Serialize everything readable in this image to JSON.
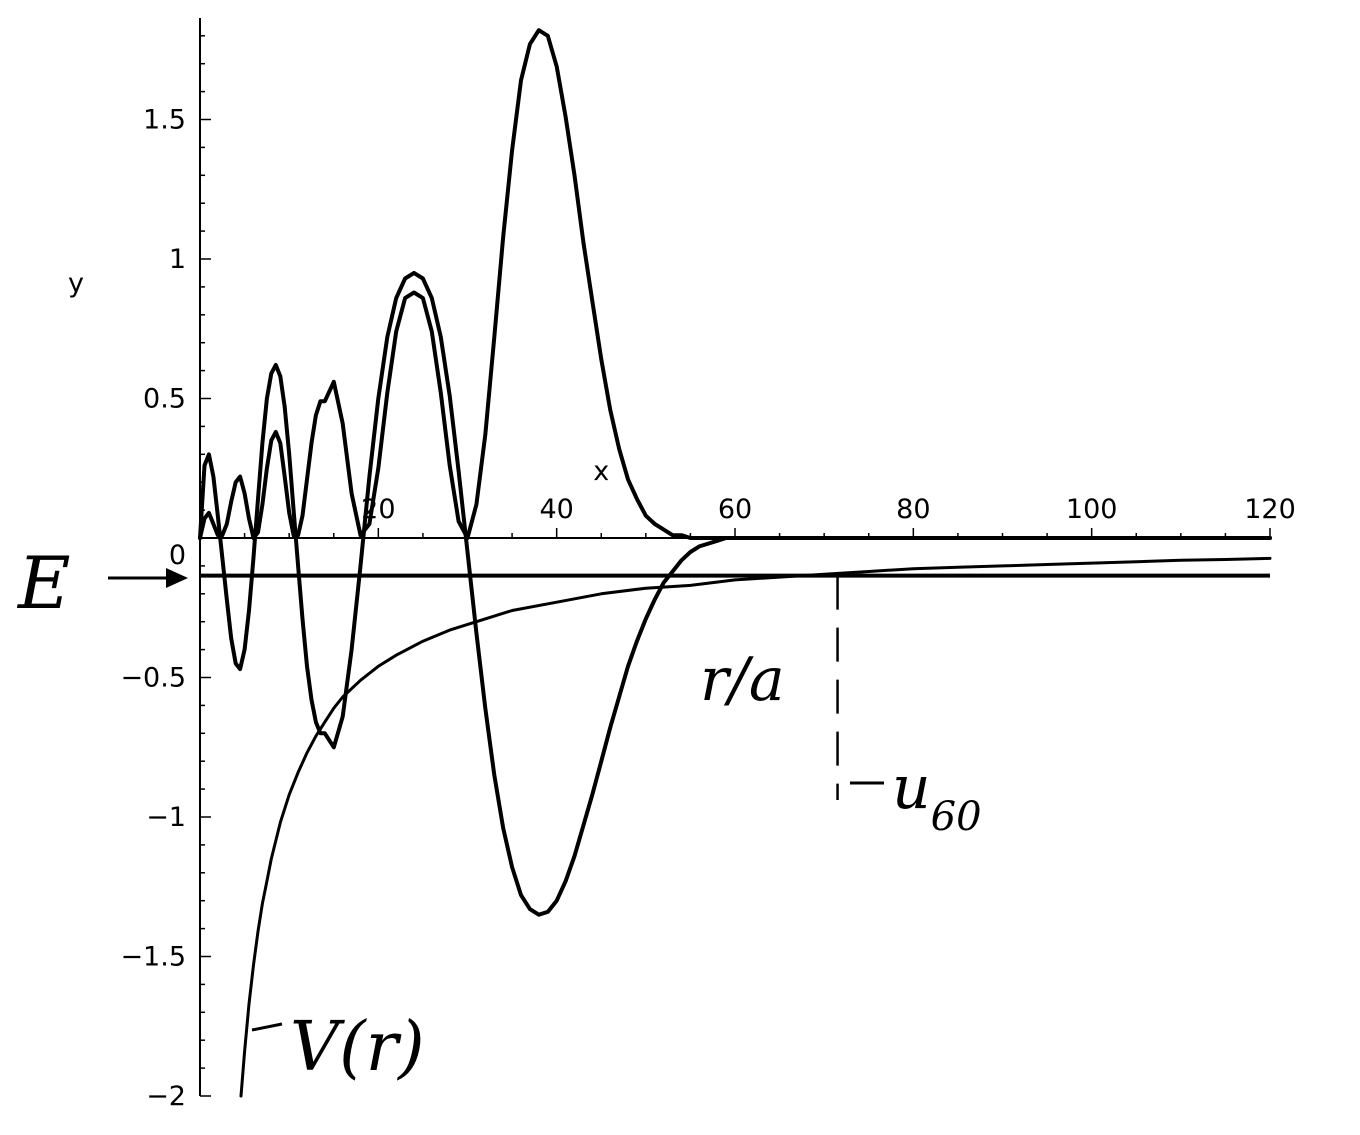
{
  "chart_data": {
    "type": "line",
    "xlabel": "x",
    "ylabel": "y",
    "xlim": [
      0,
      120
    ],
    "ylim": [
      -2,
      1.85
    ],
    "x_ticks": [
      "20",
      "40",
      "60",
      "80",
      "100",
      "120"
    ],
    "y_ticks": [
      "1.5",
      "1",
      "0.5",
      "0",
      "−0.5",
      "−1",
      "−1.5",
      "−2"
    ],
    "energy_level": -0.135,
    "turning_point_x": 71.5,
    "annotations": {
      "energy": "E",
      "turning_point": "r/a",
      "wavefunction": "u",
      "wavefunction_subscript": "60",
      "potential": "V(r)"
    },
    "series": [
      {
        "key": "u60",
        "x": [
          0,
          0.5,
          1,
          1.5,
          2,
          2.5,
          3,
          3.5,
          4,
          4.5,
          5,
          5.5,
          6,
          6.5,
          7,
          7.5,
          8,
          8.5,
          9,
          9.5,
          10,
          10.5,
          11,
          11.5,
          12,
          12.5,
          13,
          13.5,
          14,
          15,
          16,
          17,
          18,
          19,
          20,
          21,
          22,
          23,
          24,
          25,
          26,
          27,
          28,
          29,
          30,
          31,
          32,
          33,
          34,
          35,
          36,
          37,
          38,
          39,
          40,
          41,
          42,
          43,
          44,
          45,
          46,
          47,
          48,
          49,
          50,
          51,
          52,
          53,
          54,
          55,
          56,
          57,
          58,
          59,
          60,
          61,
          62,
          63,
          64,
          65,
          66,
          67,
          68,
          69,
          70,
          71,
          72,
          73,
          74,
          75,
          76,
          77,
          78,
          79,
          80,
          82,
          84,
          86,
          88,
          90,
          92,
          94,
          96,
          98,
          100,
          102,
          104,
          106,
          108,
          110,
          112,
          114,
          116,
          118,
          120
        ],
        "y": [
          0,
          0.26,
          0.3,
          0.22,
          0.08,
          -0.07,
          -0.22,
          -0.36,
          -0.45,
          -0.47,
          -0.4,
          -0.26,
          -0.07,
          0.14,
          0.34,
          0.5,
          0.59,
          0.62,
          0.58,
          0.47,
          0.3,
          0.1,
          -0.1,
          -0.29,
          -0.46,
          -0.58,
          -0.66,
          -0.7,
          -0.7,
          -0.75,
          -0.64,
          -0.4,
          -0.1,
          0.22,
          0.5,
          0.72,
          0.86,
          0.93,
          0.95,
          0.93,
          0.86,
          0.72,
          0.51,
          0.24,
          -0.05,
          -0.34,
          -0.61,
          -0.85,
          -1.04,
          -1.18,
          -1.28,
          -1.33,
          -1.35,
          -1.34,
          -1.3,
          -1.23,
          -1.14,
          -1.03,
          -0.92,
          -0.8,
          -0.68,
          -0.57,
          -0.46,
          -0.37,
          -0.29,
          -0.22,
          -0.16,
          -0.12,
          -0.08,
          -0.05,
          -0.03,
          -0.02,
          -0.01,
          0,
          0,
          0,
          0,
          0,
          0,
          0,
          0,
          0,
          0,
          0,
          0,
          0,
          0,
          0,
          0,
          0,
          0,
          0,
          0,
          0,
          0,
          0,
          0,
          0,
          0,
          0,
          0,
          0,
          0,
          0,
          0,
          0,
          0,
          0,
          0,
          0,
          0,
          0,
          0,
          0,
          0
        ]
      },
      {
        "key": "u60-squared",
        "x": [
          0,
          0.5,
          1,
          1.5,
          2,
          2.5,
          3,
          3.5,
          4,
          4.5,
          5,
          5.5,
          6,
          6.5,
          7,
          7.5,
          8,
          8.5,
          9,
          9.5,
          10,
          10.5,
          11,
          11.5,
          12,
          12.5,
          13,
          13.5,
          14,
          15,
          16,
          17,
          18,
          19,
          20,
          21,
          22,
          23,
          24,
          25,
          26,
          27,
          28,
          29,
          30,
          31,
          32,
          33,
          34,
          35,
          36,
          37,
          38,
          39,
          40,
          41,
          42,
          43,
          44,
          45,
          46,
          47,
          48,
          49,
          50,
          51,
          52,
          53,
          54,
          55,
          56,
          57,
          58,
          59,
          60,
          61,
          62,
          63,
          64,
          65,
          66,
          67,
          68,
          69,
          70,
          71,
          72,
          73,
          74,
          75,
          76,
          77,
          78,
          79,
          80,
          82,
          84,
          86,
          88,
          90,
          92,
          94,
          96,
          98,
          100,
          102,
          104,
          106,
          108,
          110,
          112,
          114,
          116,
          118,
          120
        ],
        "y": [
          0,
          0.07,
          0.09,
          0.05,
          0.01,
          0.01,
          0.05,
          0.13,
          0.2,
          0.22,
          0.16,
          0.07,
          0,
          0.02,
          0.12,
          0.25,
          0.35,
          0.38,
          0.34,
          0.22,
          0.09,
          0.01,
          0.01,
          0.08,
          0.21,
          0.34,
          0.44,
          0.49,
          0.49,
          0.56,
          0.41,
          0.16,
          0.01,
          0.05,
          0.25,
          0.52,
          0.74,
          0.86,
          0.88,
          0.86,
          0.74,
          0.52,
          0.26,
          0.06,
          0,
          0.12,
          0.37,
          0.72,
          1.08,
          1.39,
          1.64,
          1.77,
          1.82,
          1.8,
          1.69,
          1.51,
          1.3,
          1.06,
          0.85,
          0.64,
          0.46,
          0.32,
          0.21,
          0.14,
          0.08,
          0.05,
          0.03,
          0.01,
          0.01,
          0,
          0,
          0,
          0,
          0,
          0,
          0,
          0,
          0,
          0,
          0,
          0,
          0,
          0,
          0,
          0,
          0,
          0,
          0,
          0,
          0,
          0,
          0,
          0,
          0,
          0,
          0,
          0,
          0,
          0,
          0,
          0,
          0,
          0,
          0,
          0,
          0,
          0,
          0,
          0,
          0,
          0,
          0,
          0,
          0,
          0
        ]
      },
      {
        "key": "V",
        "x": [
          4.6,
          5,
          5.5,
          6,
          6.5,
          7,
          7.5,
          8,
          9,
          10,
          11,
          12,
          13,
          14,
          15,
          16,
          18,
          20,
          22,
          25,
          28,
          31,
          35,
          40,
          45,
          50,
          55,
          60,
          65,
          70,
          75,
          80,
          85,
          90,
          95,
          100,
          105,
          110,
          115,
          120
        ],
        "y": [
          -2,
          -1.84,
          -1.67,
          -1.53,
          -1.41,
          -1.31,
          -1.23,
          -1.15,
          -1.02,
          -0.92,
          -0.84,
          -0.77,
          -0.71,
          -0.66,
          -0.61,
          -0.57,
          -0.51,
          -0.46,
          -0.42,
          -0.37,
          -0.33,
          -0.3,
          -0.26,
          -0.23,
          -0.2,
          -0.18,
          -0.17,
          -0.15,
          -0.14,
          -0.13,
          -0.12,
          -0.11,
          -0.105,
          -0.1,
          -0.095,
          -0.09,
          -0.085,
          -0.08,
          -0.077,
          -0.073
        ]
      }
    ]
  }
}
